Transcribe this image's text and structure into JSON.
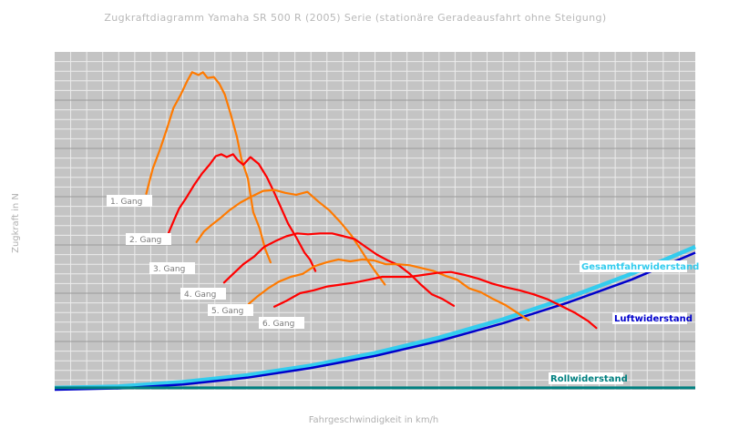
{
  "chart_data": {
    "type": "line",
    "title": "Zugkraftdiagramm Yamaha SR 500 R (2005) Serie (stationäre Geradeausfahrt ohne Steigung)",
    "xlabel": "Fahrgeschwindigkeit in km/h",
    "ylabel": "Zugkraft in N",
    "xlim": [
      0,
      200
    ],
    "ylim": [
      0,
      3500
    ],
    "grid": true,
    "series": [
      {
        "name": "1. Gang",
        "color": "#ff7a00",
        "x": [
          28.6,
          30.6,
          32.9,
          34.9,
          37.1,
          39.4,
          41.4,
          42.9,
          44.9,
          46.3,
          47.7,
          49.7,
          51.4,
          53.1,
          54.9,
          56.9,
          58.3,
          60.3,
          62.0,
          64.0,
          65.7,
          67.4
        ],
        "y": [
          2030,
          2290,
          2490,
          2690,
          2920,
          3060,
          3200,
          3290,
          3260,
          3290,
          3230,
          3240,
          3170,
          3060,
          2860,
          2620,
          2390,
          2190,
          1840,
          1670,
          1460,
          1320
        ]
      },
      {
        "name": "2. Gang",
        "color": "#ff0000",
        "x": [
          35.4,
          37.4,
          38.9,
          41.1,
          43.7,
          46.0,
          48.3,
          50.3,
          52.0,
          53.7,
          55.7,
          57.1,
          58.9,
          61.1,
          63.7,
          66.3,
          68.6,
          70.6,
          72.9,
          75.4,
          78.0,
          79.7,
          81.4
        ],
        "y": [
          1610,
          1770,
          1880,
          1990,
          2130,
          2240,
          2330,
          2420,
          2440,
          2410,
          2440,
          2380,
          2330,
          2410,
          2340,
          2200,
          2040,
          1890,
          1720,
          1580,
          1420,
          1350,
          1230
        ]
      },
      {
        "name": "3. Gang",
        "color": "#ff7a00",
        "x": [
          44.3,
          46.6,
          49.1,
          51.4,
          54.6,
          58.0,
          61.4,
          65.1,
          68.6,
          72.0,
          75.4,
          78.9,
          82.3,
          85.7,
          89.1,
          92.6,
          95.4,
          97.7,
          100.0,
          103.1
        ],
        "y": [
          1530,
          1640,
          1710,
          1770,
          1860,
          1940,
          2000,
          2060,
          2070,
          2040,
          2020,
          2050,
          1950,
          1860,
          1740,
          1600,
          1460,
          1340,
          1230,
          1090
        ]
      },
      {
        "name": "4. Gang",
        "color": "#ff0000",
        "x": [
          52.9,
          55.7,
          58.9,
          62.3,
          65.4,
          68.9,
          72.3,
          75.7,
          79.1,
          82.9,
          86.6,
          90.3,
          93.7,
          97.1,
          100.6,
          104.0,
          107.4,
          110.9,
          114.3,
          117.7,
          121.1,
          124.6
        ],
        "y": [
          1110,
          1200,
          1300,
          1380,
          1480,
          1540,
          1590,
          1620,
          1610,
          1620,
          1620,
          1590,
          1560,
          1480,
          1400,
          1340,
          1290,
          1200,
          1090,
          990,
          940,
          870
        ]
      },
      {
        "name": "5. Gang",
        "color": "#ff7a00",
        "x": [
          60.6,
          63.4,
          66.6,
          70.0,
          73.7,
          77.4,
          81.1,
          84.9,
          88.6,
          92.3,
          96.0,
          99.7,
          103.4,
          107.1,
          110.9,
          114.6,
          118.3,
          122.0,
          125.7,
          129.4,
          133.1,
          136.9,
          140.6,
          144.3,
          148.0
        ],
        "y": [
          890,
          970,
          1050,
          1120,
          1170,
          1200,
          1280,
          1320,
          1350,
          1330,
          1350,
          1340,
          1300,
          1300,
          1290,
          1260,
          1230,
          1180,
          1140,
          1050,
          1010,
          940,
          880,
          800,
          720
        ]
      },
      {
        "name": "6. Gang",
        "color": "#ff0000",
        "x": [
          68.6,
          72.3,
          76.6,
          80.9,
          85.1,
          89.4,
          93.7,
          98.0,
          102.3,
          106.6,
          110.9,
          115.1,
          119.4,
          123.7,
          128.0,
          132.3,
          136.6,
          140.9,
          145.1,
          149.4,
          153.7,
          158.0,
          162.3,
          166.6,
          169.1
        ],
        "y": [
          860,
          920,
          1000,
          1030,
          1070,
          1090,
          1110,
          1140,
          1170,
          1170,
          1170,
          1190,
          1210,
          1220,
          1190,
          1150,
          1100,
          1060,
          1030,
          990,
          940,
          870,
          800,
          710,
          640
        ]
      }
    ],
    "resistance_curves": [
      {
        "name": "Gesamtfahrwiderstand",
        "color": "#33ccee",
        "x": [
          0,
          20,
          40,
          60,
          80,
          100,
          120,
          140,
          160,
          180,
          200
        ],
        "y": [
          20,
          34,
          80,
          150,
          250,
          380,
          540,
          730,
          950,
          1200,
          1480
        ]
      },
      {
        "name": "Luftwiderstand",
        "color": "#0000cc",
        "x": [
          0,
          20,
          40,
          60,
          80,
          100,
          120,
          140,
          160,
          180,
          200
        ],
        "y": [
          0,
          14,
          55,
          125,
          225,
          350,
          505,
          690,
          900,
          1140,
          1420
        ]
      },
      {
        "name": "Rollwiderstand",
        "color": "#008080",
        "x": [
          0,
          200
        ],
        "y": [
          20,
          20
        ]
      }
    ],
    "gear_labels": [
      "1. Gang",
      "2. Gang",
      "3. Gang",
      "4. Gang",
      "5. Gang",
      "6. Gang"
    ]
  }
}
